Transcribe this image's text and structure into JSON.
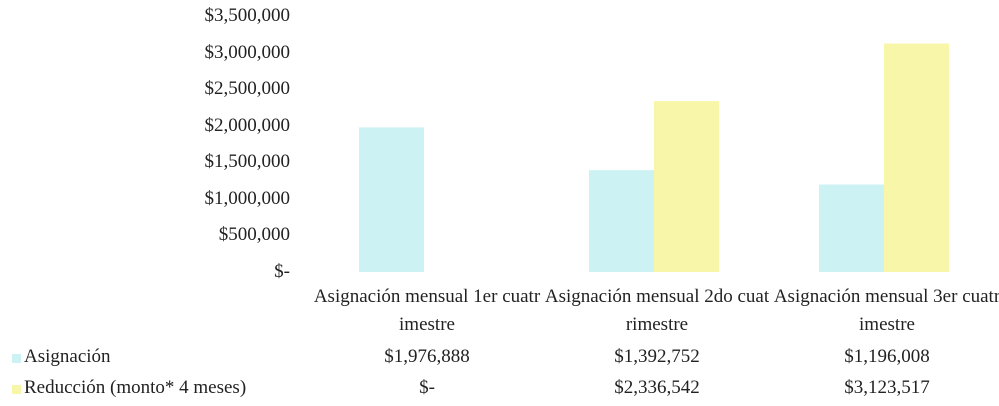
{
  "chart_data": {
    "type": "bar",
    "categories": [
      "Asignación mensual 1er cuatrimestre",
      "Asignación mensual 2do cuatrimestre",
      "Asignación mensual 3er cuatrimestre"
    ],
    "series": [
      {
        "name": "Asignación",
        "color": "#cdf2f4",
        "values": [
          1976888,
          1392752,
          1196008
        ],
        "value_labels": [
          "$1,976,888",
          "$1,392,752",
          "$1,196,008"
        ]
      },
      {
        "name": "Reducción (monto* 4 meses)",
        "color": "#f8f6a8",
        "values": [
          0,
          2336542,
          3123517
        ],
        "value_labels": [
          "$-",
          "$2,336,542",
          "$3,123,517"
        ]
      }
    ],
    "ylim": [
      0,
      3500000
    ],
    "yticks": [
      {
        "value": 0,
        "label": "$-"
      },
      {
        "value": 500000,
        "label": "$500,000"
      },
      {
        "value": 1000000,
        "label": "$1,000,000"
      },
      {
        "value": 1500000,
        "label": "$1,500,000"
      },
      {
        "value": 2000000,
        "label": "$2,000,000"
      },
      {
        "value": 2500000,
        "label": "$2,500,000"
      },
      {
        "value": 3000000,
        "label": "$3,000,000"
      },
      {
        "value": 3500000,
        "label": "$3,500,000"
      }
    ],
    "grid": false
  }
}
